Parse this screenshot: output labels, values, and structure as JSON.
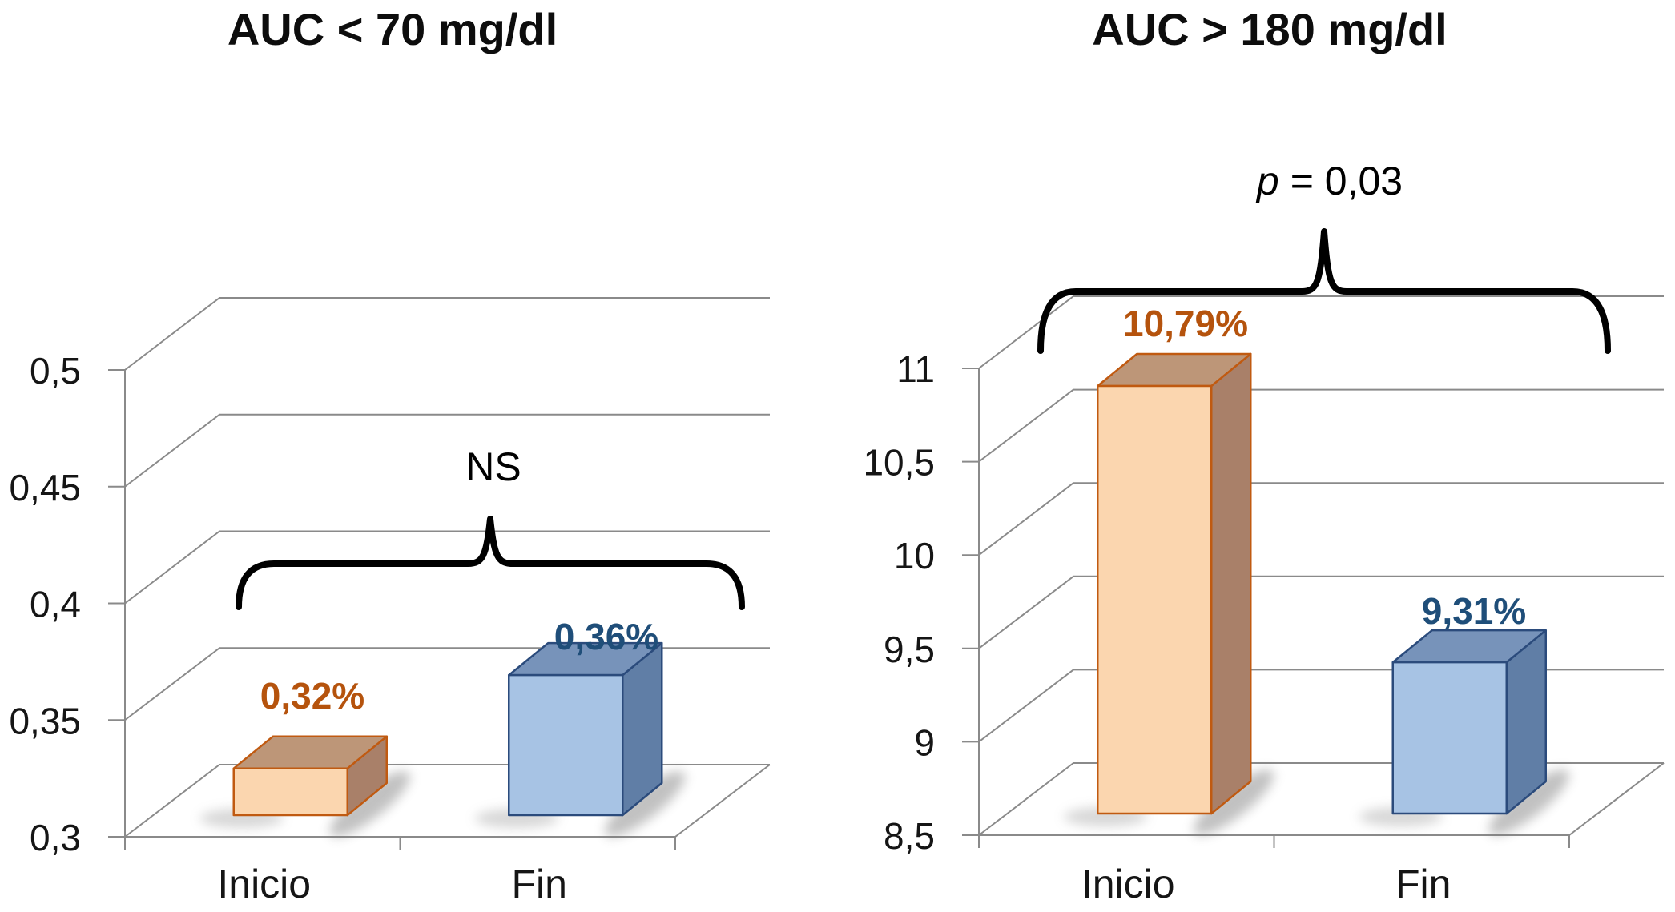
{
  "figure": {
    "background": "#ffffff",
    "description_texts": {
      "left_title": "AUC < 70 mg/dl",
      "right_title": "AUC > 180 mg/dl"
    }
  },
  "colors": {
    "grid": "#8a8a8a",
    "text": "#151515",
    "bracket": "#000000",
    "orange": {
      "front": "#FBD6AF",
      "top": "#BD9678",
      "side": "#A98069",
      "border": "#C05A11",
      "label": "#B5530D"
    },
    "blue": {
      "front": "#A7C3E4",
      "top": "#7793BA",
      "side": "#607EA6",
      "border": "#2B4B7C",
      "label": "#1F4E79"
    }
  },
  "chart_data": [
    {
      "type": "bar",
      "style": "3d",
      "title": "AUC < 70 mg/dl",
      "categories": [
        "Inicio",
        "Fin"
      ],
      "values": [
        0.32,
        0.36
      ],
      "value_labels": [
        "0,32%",
        "0,36%"
      ],
      "bar_styles": [
        "orange",
        "blue"
      ],
      "annotation": "NS",
      "xlabel": "",
      "ylabel": "",
      "ylim": [
        0.3,
        0.5
      ],
      "ytick_step": 0.05,
      "ytick_labels": [
        "0,3",
        "0,35",
        "0,4",
        "0,45",
        "0,5"
      ],
      "grid": true,
      "legend": false
    },
    {
      "type": "bar",
      "style": "3d",
      "title": "AUC > 180 mg/dl",
      "categories": [
        "Inicio",
        "Fin"
      ],
      "values": [
        10.79,
        9.31
      ],
      "value_labels": [
        "10,79%",
        "9,31%"
      ],
      "bar_styles": [
        "orange",
        "blue"
      ],
      "annotation": "p = 0,03",
      "annotation_parts": {
        "italic": "p",
        "rest": "= 0,03"
      },
      "xlabel": "",
      "ylabel": "",
      "ylim": [
        8.5,
        11
      ],
      "ytick_step": 0.5,
      "ytick_labels": [
        "8,5",
        "9",
        "9,5",
        "10",
        "10,5",
        "11"
      ],
      "grid": true,
      "legend": false
    }
  ]
}
